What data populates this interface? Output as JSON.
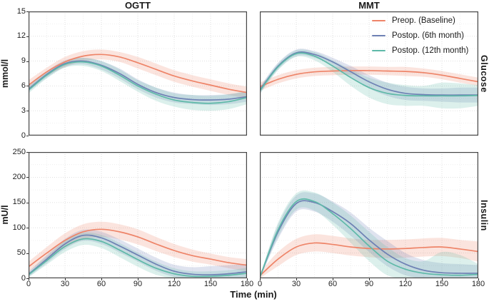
{
  "figure": {
    "column_titles": [
      "OGTT",
      "MMT"
    ],
    "row_strips": [
      "Glucose",
      "Insulin"
    ],
    "x_axis": {
      "title": "Time (min)",
      "min": 0,
      "max": 180,
      "ticks": [
        0,
        30,
        60,
        90,
        120,
        150,
        180
      ],
      "minor_step": 15
    },
    "rows": [
      {
        "ylabel": "mmol/l",
        "ymin": 0,
        "ymax": 15,
        "yticks": [
          0,
          3,
          6,
          9,
          12,
          15
        ],
        "yminor": 1.5
      },
      {
        "ylabel": "mU/l",
        "ymin": 0,
        "ymax": 250,
        "yticks": [
          0,
          50,
          100,
          150,
          200,
          250
        ],
        "yminor": 25
      }
    ],
    "legend": [
      {
        "label": "Preop. (Baseline)",
        "color": "#EE8468"
      },
      {
        "label": "Postop. (6th month)",
        "color": "#6E81B4"
      },
      {
        "label": "Postop. (12th month)",
        "color": "#5EB9A8"
      }
    ],
    "colors": {
      "grid_major": "#DCDCDC",
      "grid_minor": "#EBEBEB",
      "panel_border": "#454545",
      "band_opacity": 0.22
    }
  },
  "chart_data": {
    "type": "line",
    "title": "",
    "xlabel": "Time (min)",
    "x": [
      0,
      15,
      30,
      45,
      60,
      75,
      90,
      105,
      120,
      135,
      150,
      165,
      180
    ],
    "legend_position": "top-right panel inset",
    "grid": true,
    "panels": [
      {
        "title": "OGTT",
        "measure": "Glucose",
        "ylabel": "mmol/l",
        "ylim": [
          0,
          15
        ],
        "row": 0,
        "col": 0,
        "series": [
          {
            "name": "Preop. (Baseline)",
            "color": "#EE8468",
            "values": [
              6.1,
              7.7,
              8.9,
              9.6,
              9.8,
              9.5,
              8.8,
              8.0,
              7.2,
              6.6,
              6.1,
              5.6,
              5.2
            ],
            "lower": [
              5.7,
              7.2,
              8.3,
              9.0,
              9.2,
              8.9,
              8.1,
              7.3,
              6.5,
              5.9,
              5.4,
              4.9,
              4.5
            ],
            "upper": [
              6.7,
              8.2,
              9.5,
              10.2,
              10.4,
              10.1,
              9.5,
              8.7,
              7.9,
              7.3,
              6.8,
              6.3,
              5.9
            ]
          },
          {
            "name": "Postop. (6th month)",
            "color": "#6E81B4",
            "values": [
              5.6,
              7.4,
              8.7,
              9.0,
              8.5,
              7.5,
              6.2,
              5.2,
              4.6,
              4.35,
              4.3,
              4.4,
              4.7
            ],
            "lower": [
              5.3,
              7.0,
              8.3,
              8.6,
              8.0,
              6.9,
              5.6,
              4.6,
              4.0,
              3.8,
              3.7,
              3.8,
              4.1
            ],
            "upper": [
              6.1,
              7.8,
              9.1,
              9.4,
              9.0,
              8.1,
              6.8,
              5.8,
              5.2,
              4.9,
              4.9,
              5.0,
              5.3
            ]
          },
          {
            "name": "Postop. (12th month)",
            "color": "#5EB9A8",
            "values": [
              5.5,
              7.3,
              8.6,
              8.9,
              8.4,
              7.3,
              6.0,
              5.0,
              4.3,
              4.0,
              3.9,
              4.1,
              4.6
            ],
            "lower": [
              5.1,
              6.9,
              8.2,
              8.4,
              7.8,
              6.6,
              5.3,
              4.2,
              3.5,
              3.1,
              3.0,
              3.2,
              3.8
            ],
            "upper": [
              5.9,
              7.7,
              9.0,
              9.4,
              9.0,
              8.0,
              6.7,
              5.8,
              5.1,
              4.9,
              4.8,
              5.0,
              5.4
            ]
          }
        ]
      },
      {
        "title": "MMT",
        "measure": "Glucose",
        "ylabel": "mmol/l",
        "ylim": [
          0,
          15
        ],
        "row": 0,
        "col": 1,
        "series": [
          {
            "name": "Preop. (Baseline)",
            "color": "#EE8468",
            "values": [
              5.9,
              6.8,
              7.4,
              7.7,
              7.8,
              7.85,
              7.85,
              7.8,
              7.75,
              7.6,
              7.3,
              6.9,
              6.5
            ],
            "lower": [
              5.4,
              6.3,
              6.9,
              7.2,
              7.3,
              7.35,
              7.35,
              7.3,
              7.2,
              7.1,
              6.8,
              6.4,
              6.0
            ],
            "upper": [
              6.4,
              7.3,
              7.9,
              8.2,
              8.3,
              8.35,
              8.35,
              8.3,
              8.3,
              8.1,
              7.8,
              7.4,
              7.0
            ]
          },
          {
            "name": "Postop. (6th month)",
            "color": "#6E81B4",
            "values": [
              5.5,
              8.4,
              10.0,
              9.8,
              8.9,
              7.7,
              6.5,
              5.6,
              5.1,
              4.95,
              4.9,
              4.9,
              4.9
            ],
            "lower": [
              5.1,
              8.0,
              9.6,
              9.4,
              8.4,
              7.0,
              5.7,
              4.8,
              4.3,
              4.2,
              4.1,
              4.0,
              4.0
            ],
            "upper": [
              5.9,
              8.8,
              10.4,
              10.2,
              9.4,
              8.4,
              7.3,
              6.4,
              5.9,
              5.7,
              5.7,
              5.8,
              5.8
            ]
          },
          {
            "name": "Postop. (12th month)",
            "color": "#5EB9A8",
            "values": [
              5.4,
              8.3,
              9.9,
              9.6,
              8.4,
              7.0,
              5.8,
              5.1,
              4.85,
              4.8,
              4.8,
              4.8,
              4.85
            ],
            "lower": [
              5.0,
              7.9,
              9.5,
              9.1,
              7.7,
              6.0,
              4.6,
              3.8,
              3.6,
              3.6,
              3.3,
              3.3,
              3.6
            ],
            "upper": [
              5.8,
              8.7,
              10.3,
              10.1,
              9.1,
              8.0,
              7.0,
              6.4,
              6.1,
              6.0,
              6.4,
              6.3,
              6.1
            ]
          }
        ]
      },
      {
        "title": "OGTT",
        "measure": "Insulin",
        "ylabel": "mU/l",
        "ylim": [
          0,
          250
        ],
        "row": 1,
        "col": 0,
        "series": [
          {
            "name": "Preop. (Baseline)",
            "color": "#EE8468",
            "values": [
              23,
              50,
              75,
              92,
              97,
              92,
              82,
              68,
              55,
              45,
              38,
              31,
              26
            ],
            "lower": [
              13,
              38,
              61,
              77,
              82,
              77,
              67,
              54,
              42,
              33,
              27,
              20,
              14
            ],
            "upper": [
              33,
              62,
              89,
              107,
              112,
              107,
              97,
              82,
              68,
              57,
              49,
              42,
              38
            ]
          },
          {
            "name": "Postop. (6th month)",
            "color": "#6E81B4",
            "values": [
              8,
              38,
              68,
              85,
              80,
              64,
              46,
              28,
              14,
              8,
              7,
              9,
              13
            ],
            "lower": [
              3,
              30,
              58,
              74,
              68,
              51,
              33,
              15,
              3,
              0,
              0,
              0,
              2
            ],
            "upper": [
              13,
              46,
              78,
              96,
              92,
              77,
              59,
              41,
              27,
              22,
              24,
              26,
              28
            ]
          },
          {
            "name": "Postop. (12th month)",
            "color": "#5EB9A8",
            "values": [
              7,
              35,
              63,
              78,
              73,
              56,
              37,
              20,
              9,
              4,
              4,
              6,
              10
            ],
            "lower": [
              2,
              27,
              52,
              66,
              60,
              42,
              23,
              7,
              0,
              0,
              0,
              0,
              1
            ],
            "upper": [
              12,
              43,
              74,
              90,
              86,
              70,
              51,
              33,
              20,
              14,
              14,
              16,
              21
            ]
          }
        ]
      },
      {
        "title": "MMT",
        "measure": "Insulin",
        "ylabel": "mU/l",
        "ylim": [
          0,
          250
        ],
        "row": 1,
        "col": 1,
        "series": [
          {
            "name": "Preop. (Baseline)",
            "color": "#EE8468",
            "values": [
              5,
              38,
              62,
              70,
              67,
              62,
              59,
              58,
              59,
              61,
              62,
              58,
              53
            ],
            "lower": [
              0,
              24,
              46,
              53,
              50,
              45,
              42,
              40,
              41,
              43,
              44,
              40,
              33
            ],
            "upper": [
              12,
              52,
              78,
              87,
              84,
              79,
              76,
              76,
              77,
              79,
              80,
              76,
              73
            ]
          },
          {
            "name": "Postop. (6th month)",
            "color": "#6E81B4",
            "values": [
              2,
              92,
              148,
              150,
              132,
              108,
              76,
              48,
              28,
              16,
              11,
              10,
              10
            ],
            "lower": [
              0,
              78,
              132,
              132,
              112,
              84,
              52,
              24,
              6,
              0,
              0,
              0,
              0
            ],
            "upper": [
              4,
              106,
              164,
              168,
              152,
              130,
              100,
              74,
              50,
              36,
              30,
              28,
              26
            ]
          },
          {
            "name": "Postop. (12th month)",
            "color": "#5EB9A8",
            "values": [
              2,
              96,
              152,
              152,
              128,
              98,
              64,
              34,
              18,
              10,
              7,
              6,
              8
            ],
            "lower": [
              0,
              82,
              136,
              134,
              106,
              70,
              34,
              6,
              0,
              0,
              0,
              0,
              0
            ],
            "upper": [
              4,
              110,
              168,
              170,
              150,
              124,
              92,
              62,
              40,
              34,
              52,
              46,
              28
            ]
          }
        ]
      }
    ]
  }
}
